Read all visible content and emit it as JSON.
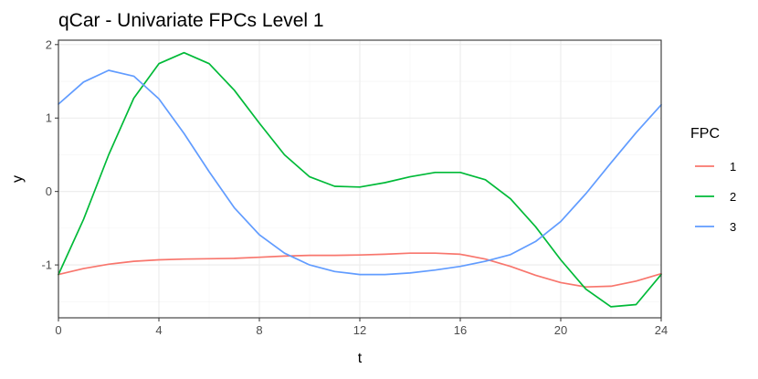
{
  "chart_data": {
    "type": "line",
    "title": "qCar - Univariate FPCs Level 1",
    "xlabel": "t",
    "ylabel": "y",
    "xlim": [
      0,
      24
    ],
    "ylim": [
      -1.72,
      2.06
    ],
    "xticks": [
      0,
      4,
      8,
      12,
      16,
      20,
      24
    ],
    "yticks": [
      -1,
      0,
      1,
      2
    ],
    "grid": true,
    "legend": {
      "title": "FPC",
      "position": "right"
    },
    "x": [
      0,
      1,
      2,
      3,
      4,
      5,
      6,
      7,
      8,
      9,
      10,
      11,
      12,
      13,
      14,
      15,
      16,
      17,
      18,
      19,
      20,
      21,
      22,
      23,
      24
    ],
    "series": [
      {
        "name": "1",
        "color": "#F8766D",
        "values": [
          -1.13,
          -1.05,
          -0.99,
          -0.95,
          -0.93,
          -0.92,
          -0.915,
          -0.91,
          -0.895,
          -0.88,
          -0.87,
          -0.87,
          -0.865,
          -0.855,
          -0.84,
          -0.84,
          -0.855,
          -0.92,
          -1.02,
          -1.14,
          -1.24,
          -1.3,
          -1.29,
          -1.22,
          -1.12
        ]
      },
      {
        "name": "2",
        "color": "#00BA38",
        "values": [
          -1.13,
          -0.38,
          0.5,
          1.27,
          1.74,
          1.89,
          1.74,
          1.38,
          0.93,
          0.5,
          0.2,
          0.07,
          0.06,
          0.12,
          0.2,
          0.26,
          0.26,
          0.16,
          -0.1,
          -0.48,
          -0.93,
          -1.33,
          -1.57,
          -1.54,
          -1.13
        ]
      },
      {
        "name": "3",
        "color": "#619CFF",
        "values": [
          1.19,
          1.49,
          1.65,
          1.57,
          1.26,
          0.79,
          0.27,
          -0.22,
          -0.59,
          -0.84,
          -1.0,
          -1.09,
          -1.13,
          -1.13,
          -1.11,
          -1.07,
          -1.02,
          -0.95,
          -0.86,
          -0.68,
          -0.41,
          -0.03,
          0.39,
          0.8,
          1.18
        ]
      }
    ]
  }
}
